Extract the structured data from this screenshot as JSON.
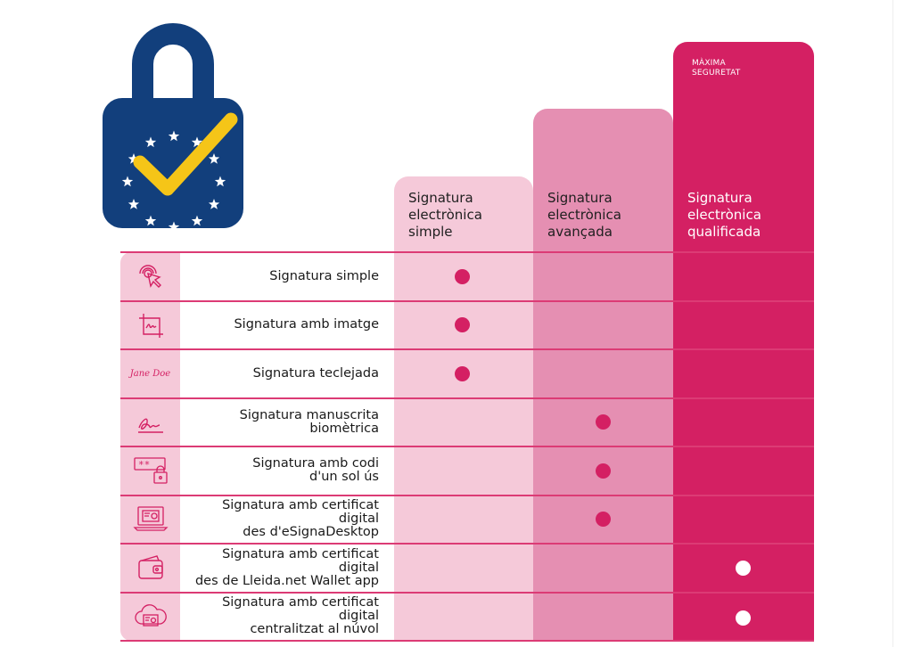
{
  "columns": [
    {
      "title": "Signatura\nelectrònica\nsimple"
    },
    {
      "title": "Signatura\nelectrònica\navançada"
    },
    {
      "title": "Signatura\nelectrònica\nqualificada"
    }
  ],
  "max_security_label": "MÀXIMA\nSEGURETAT",
  "rows": [
    {
      "label": "Signatura simple",
      "icon": "cursor-click-icon",
      "level": 0
    },
    {
      "label": "Signatura amb imatge",
      "icon": "signature-image-icon",
      "level": 0
    },
    {
      "label": "Signatura teclejada",
      "icon": "typed-name-icon",
      "icon_text": "Jane Doe",
      "level": 0
    },
    {
      "label": "Signatura manuscrita\nbiomètrica",
      "icon": "handwritten-signature-icon",
      "level": 1
    },
    {
      "label": "Signatura amb codi\nd'un sol ús",
      "icon": "one-time-code-icon",
      "icon_text": "**",
      "level": 1
    },
    {
      "label": "Signatura amb certificat digital\ndes d'eSignaDesktop",
      "icon": "desktop-certificate-icon",
      "level": 1
    },
    {
      "label": "Signatura amb certificat digital\ndes de Lleida.net Wallet app",
      "icon": "wallet-icon",
      "level": 2
    },
    {
      "label": "Signatura amb certificat digital\ncentralitzat al núvol",
      "icon": "cloud-certificate-icon",
      "level": 2
    }
  ],
  "colors": {
    "light_pink": "#f5c9d9",
    "mid_pink": "#e58fb2",
    "magenta": "#d42063",
    "lock_blue": "#123f7c",
    "check_yellow": "#f5c518"
  }
}
